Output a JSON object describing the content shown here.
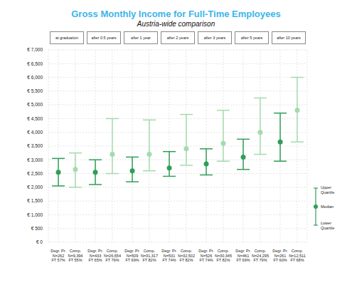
{
  "chart_data": {
    "type": "scatter",
    "title": "Gross Monthly Income for Full-Time Employees",
    "subtitle": "Austria-wide comparison",
    "categories": [
      "at graduation",
      "after 0.5 years",
      "after 1 year",
      "after 2 years",
      "after 3 years",
      "after 5 years",
      "after 10 years"
    ],
    "series": [
      {
        "name": "Degr. Pr.",
        "color": "#2f9e57",
        "marker": "circle",
        "values": [
          2550,
          2550,
          2600,
          2700,
          2850,
          3100,
          3650
        ],
        "lower_quartile": [
          2050,
          2100,
          2200,
          2400,
          2450,
          2650,
          2950
        ],
        "upper_quartile": [
          3050,
          3000,
          3100,
          3300,
          3400,
          3750,
          4700
        ],
        "n_labels": [
          "N=262",
          "N=433",
          "N=509",
          "N=531",
          "N=526",
          "N=461",
          "N=261"
        ],
        "ft_labels": [
          "FT 57%",
          "FT 65%",
          "FT 69%",
          "FT 74%",
          "FT 74%",
          "FT 69%",
          "FT 60%"
        ]
      },
      {
        "name": "Comp.",
        "color": "#a3dbac",
        "marker": "circle",
        "values": [
          2650,
          3200,
          3200,
          3400,
          3600,
          4000,
          4800
        ],
        "lower_quartile": [
          2000,
          2500,
          2600,
          2800,
          2950,
          3200,
          3650
        ],
        "upper_quartile": [
          3250,
          4500,
          4450,
          4650,
          4800,
          5250,
          6000
        ],
        "n_labels": [
          "N=9,394",
          "N=26,654",
          "N=31,317",
          "N=32,502",
          "N=30,345",
          "N=24,295",
          "N=12,511"
        ],
        "ft_labels": [
          "FT 55%",
          "FT 79%",
          "FT 82%",
          "FT 82%",
          "FT 82%",
          "FT 79%",
          "FT 68%"
        ]
      }
    ],
    "ylim": [
      0,
      7000
    ],
    "yticks": [
      {
        "value": 0,
        "label": "€ 0"
      },
      {
        "value": 500,
        "label": "€ 500"
      },
      {
        "value": 1000,
        "label": "€ 1,000"
      },
      {
        "value": 1500,
        "label": "€ 1,500"
      },
      {
        "value": 2000,
        "label": "€ 2,000"
      },
      {
        "value": 2500,
        "label": "€ 2,500"
      },
      {
        "value": 3000,
        "label": "€ 3,000"
      },
      {
        "value": 3500,
        "label": "€ 3,500"
      },
      {
        "value": 4000,
        "label": "€ 4,000"
      },
      {
        "value": 4500,
        "label": "€ 4,500"
      },
      {
        "value": 5000,
        "label": "€ 5,000"
      },
      {
        "value": 5500,
        "label": "€ 5,500"
      },
      {
        "value": 6000,
        "label": "€ 6,000"
      },
      {
        "value": 6500,
        "label": "€ 6,500"
      },
      {
        "value": 7000,
        "label": "€ 7,000"
      }
    ],
    "grid": true,
    "legend": "right",
    "legend_labels": {
      "upper": "Upper Quartile",
      "median": "Median",
      "lower": "Lower Quartile"
    }
  }
}
